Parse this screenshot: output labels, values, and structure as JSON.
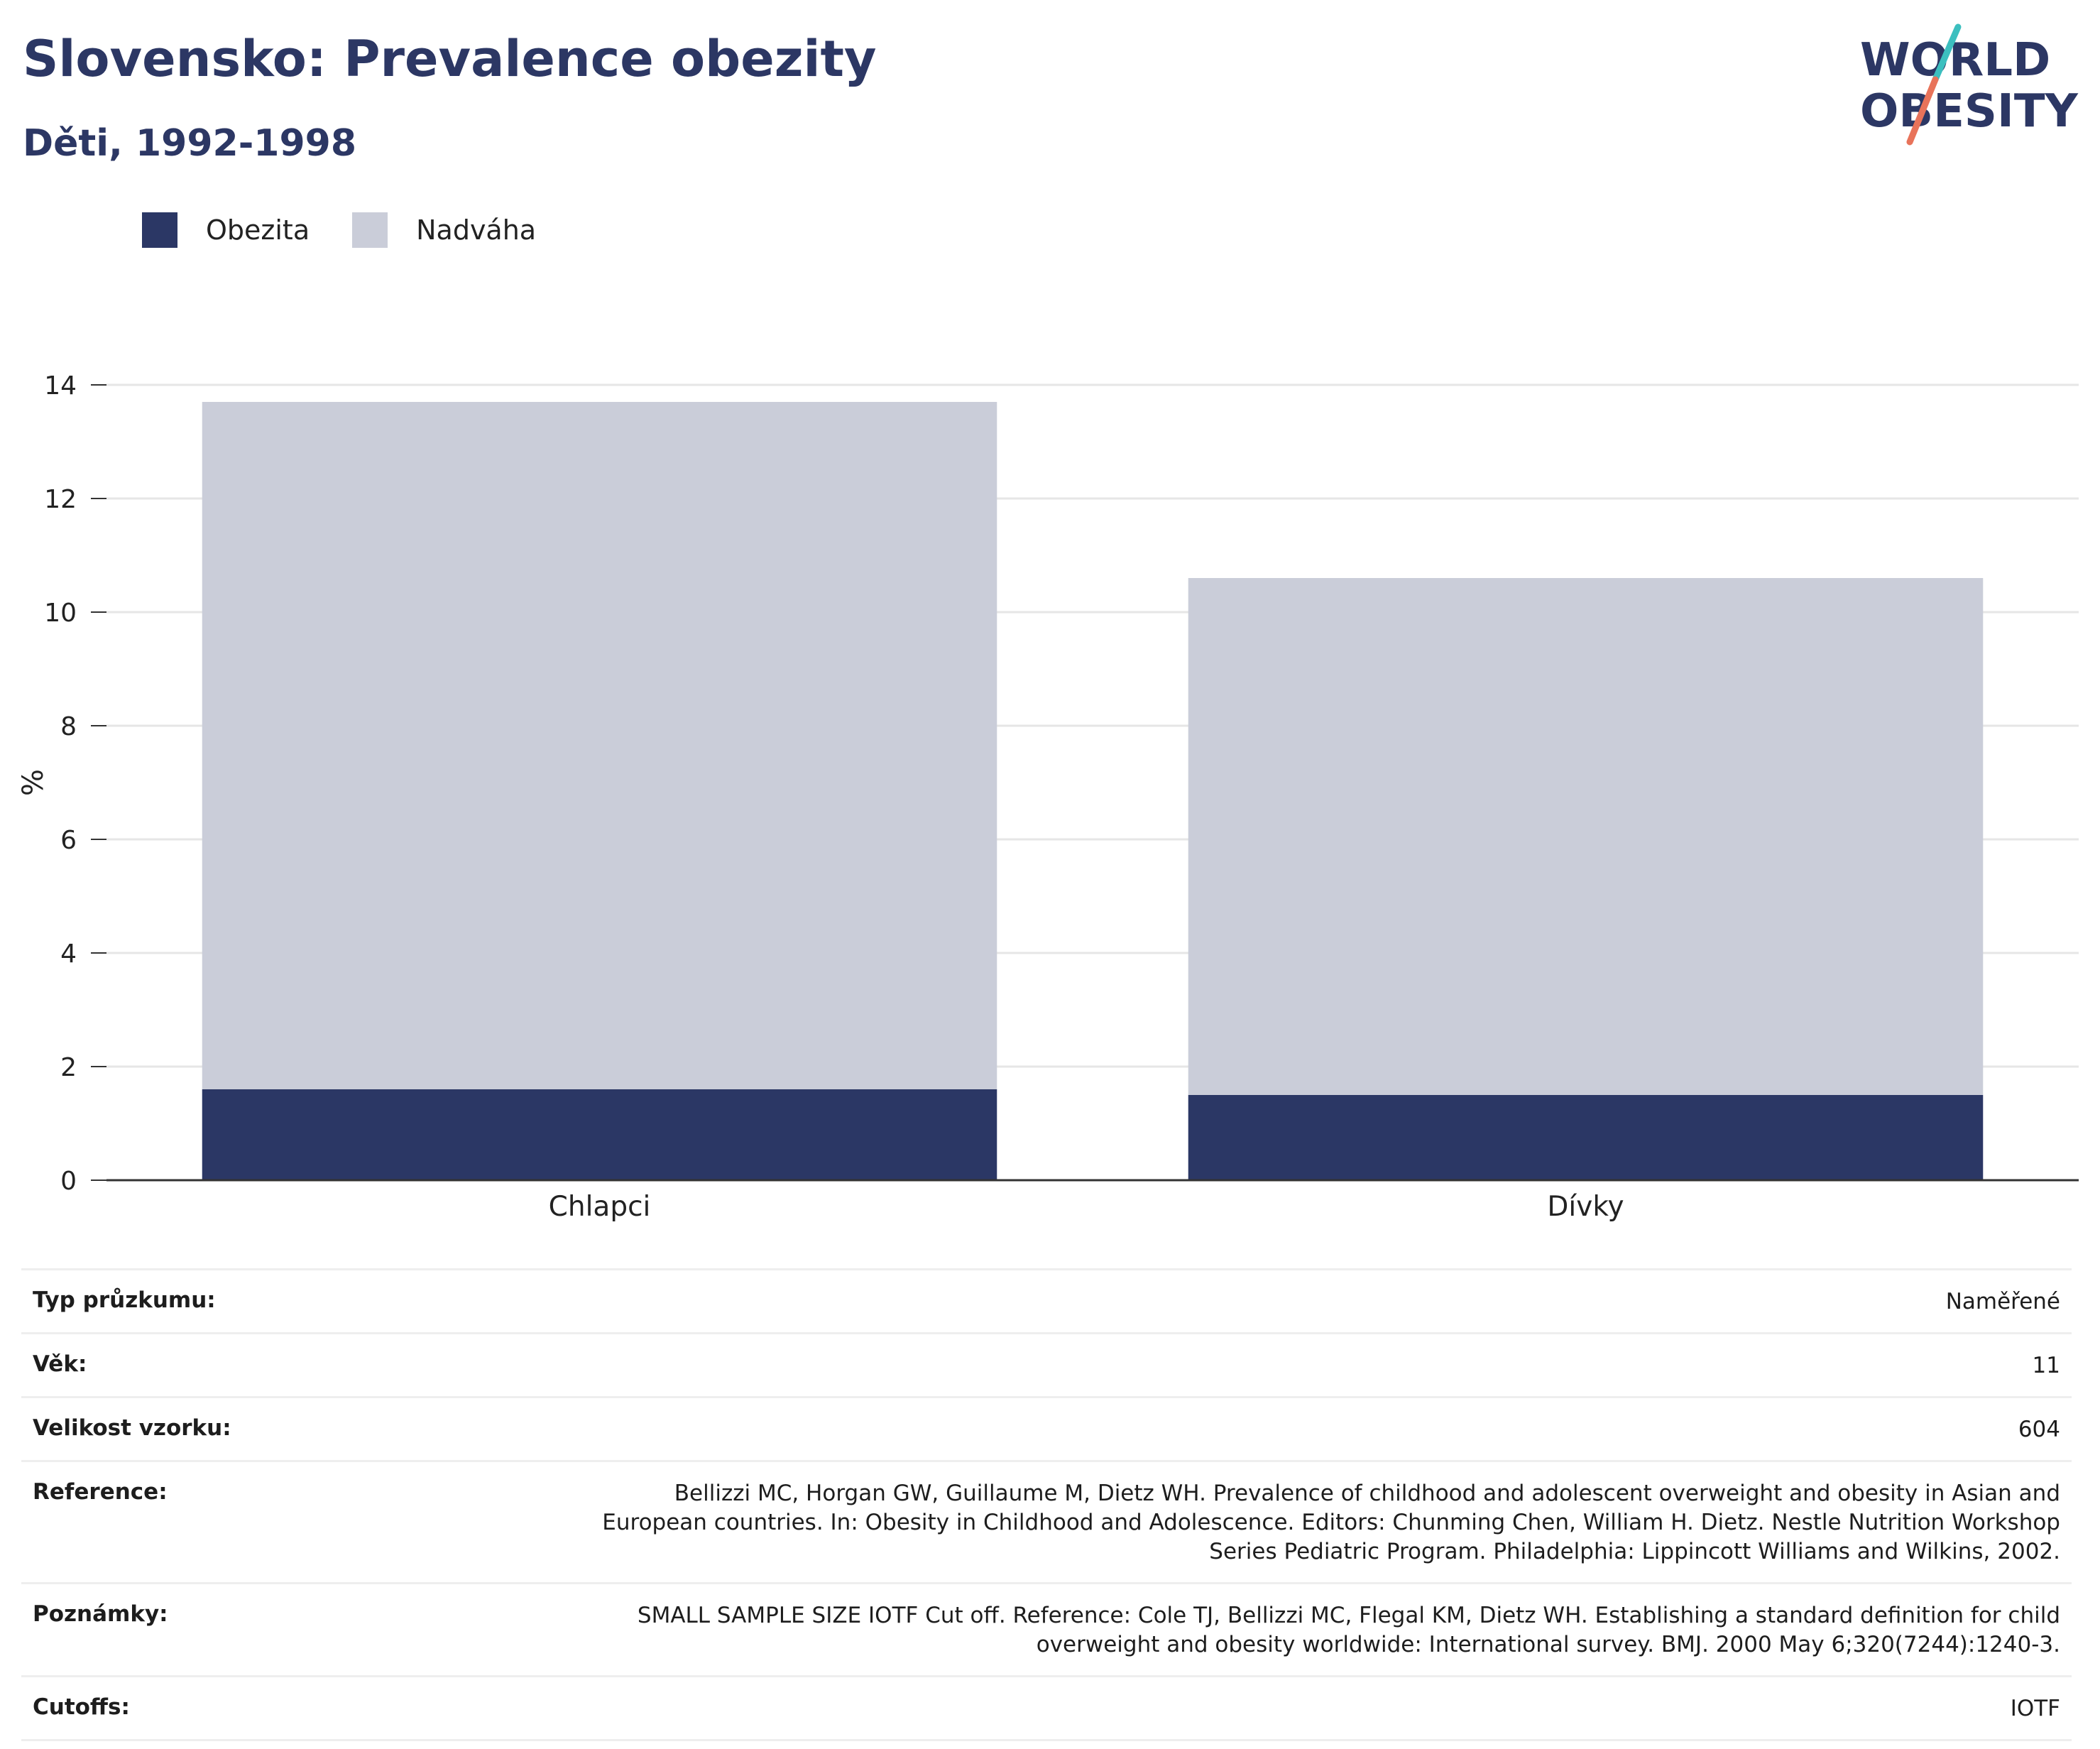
{
  "header": {
    "title": "Slovensko: Prevalence obezity",
    "subtitle": "Děti, 1992-1998"
  },
  "logo": {
    "line1": "WORLD",
    "line2": "OBESITY",
    "colors": {
      "text": "#2c3764",
      "teal": "#3cbfbf",
      "coral": "#e8735a"
    }
  },
  "colors": {
    "obezita": "#2b3765",
    "nadvaha": "#cacdd9",
    "axis": "#333333",
    "grid": "#e6e6e6",
    "title": "#2c3764"
  },
  "chart_data": {
    "type": "bar",
    "stacked": true,
    "categories": [
      "Chlapci",
      "Dívky"
    ],
    "series": [
      {
        "name": "Obezita",
        "values": [
          1.6,
          1.5
        ]
      },
      {
        "name": "Nadváha",
        "values": [
          12.1,
          9.1
        ]
      }
    ],
    "ylabel": "%",
    "ylim": [
      0,
      14
    ],
    "yticks": [
      0,
      2,
      4,
      6,
      8,
      10,
      12,
      14
    ],
    "grid": true,
    "legend": "top-left"
  },
  "info": [
    {
      "label": "Typ průzkumu:",
      "value": "Naměřené"
    },
    {
      "label": "Věk:",
      "value": "11"
    },
    {
      "label": "Velikost vzorku:",
      "value": "604"
    },
    {
      "label": "Reference:",
      "value": "Bellizzi MC, Horgan GW, Guillaume M, Dietz WH. Prevalence of childhood and adolescent overweight and obesity in Asian and European countries. In: Obesity in Childhood and Adolescence. Editors: Chunming Chen, William H. Dietz. Nestle Nutrition Workshop Series Pediatric Program. Philadelphia: Lippincott Williams and Wilkins, 2002."
    },
    {
      "label": "Poznámky:",
      "value": "SMALL SAMPLE SIZE IOTF Cut off. Reference: Cole TJ, Bellizzi MC, Flegal KM, Dietz WH. Establishing a standard definition for child overweight and obesity worldwide: International survey. BMJ. 2000 May 6;320(7244):1240-3."
    },
    {
      "label": "Cutoffs:",
      "value": "IOTF"
    }
  ]
}
